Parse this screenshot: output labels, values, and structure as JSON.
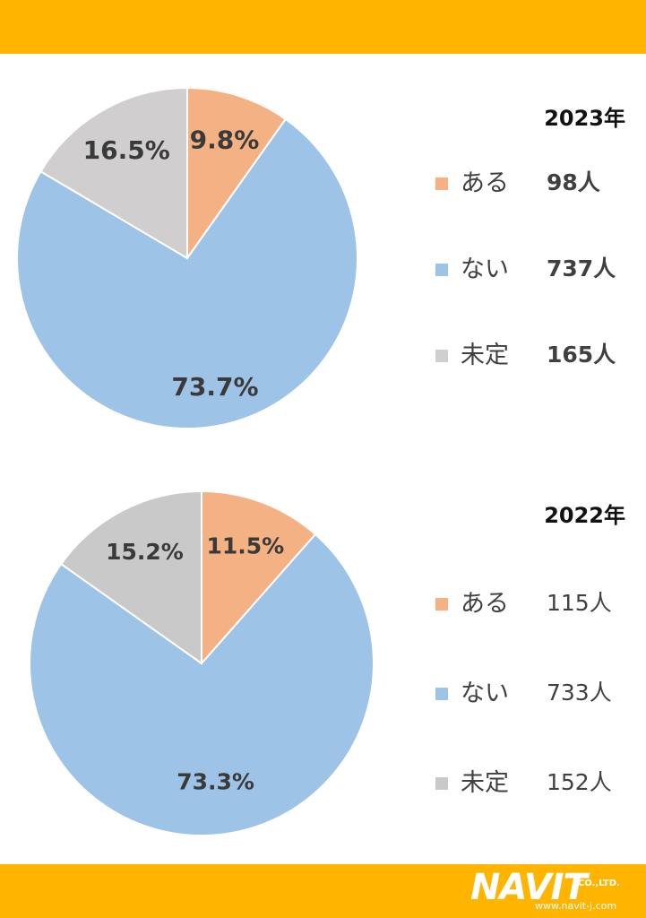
{
  "colors": {
    "band": "#FFB400",
    "aru": "#F4B183",
    "nai": "#9DC3E6",
    "mitei": "#D0CECE",
    "mitei_2022": "#C9C9C9"
  },
  "chart_data": [
    {
      "type": "pie",
      "title": "2023年",
      "categories": [
        "ある",
        "ない",
        "未定"
      ],
      "values": [
        98,
        737,
        165
      ],
      "value_labels": [
        "98人",
        "737人",
        "165人"
      ],
      "percent_labels": [
        "9.8%",
        "73.7%",
        "16.5%"
      ],
      "legend_placement": "right"
    },
    {
      "type": "pie",
      "title": "2022年",
      "categories": [
        "ある",
        "ない",
        "未定"
      ],
      "values": [
        115,
        733,
        152
      ],
      "value_labels": [
        "115人",
        "733人",
        "152人"
      ],
      "percent_labels": [
        "11.5%",
        "73.3%",
        "15.2%"
      ],
      "legend_placement": "right"
    }
  ],
  "logo": {
    "name": "NAVIT",
    "suffix": "CO.,LTD.",
    "url": "www.navit-j.com"
  }
}
